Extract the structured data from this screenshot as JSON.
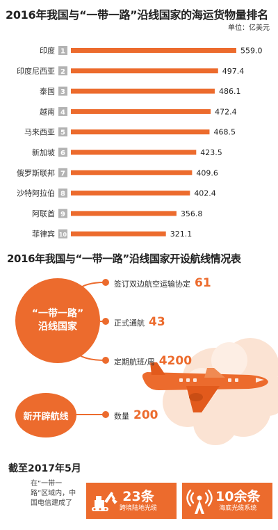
{
  "section1": {
    "title": "2016年我国与“一带一路”沿线国家的海运货物量排名",
    "unit": "单位：亿美元"
  },
  "chart_data": {
    "type": "bar",
    "orientation": "horizontal",
    "categories": [
      "印度",
      "印度尼西亚",
      "泰国",
      "越南",
      "马来西亚",
      "新加坡",
      "俄罗斯联邦",
      "沙特阿拉伯",
      "阿联酋",
      "菲律宾"
    ],
    "ranks": [
      "1",
      "2",
      "3",
      "4",
      "5",
      "6",
      "7",
      "8",
      "9",
      "10"
    ],
    "values": [
      559.0,
      497.4,
      486.1,
      472.4,
      468.5,
      423.5,
      409.6,
      402.4,
      356.8,
      321.1
    ],
    "value_labels": [
      "559.0",
      "497.4",
      "486.1",
      "472.4",
      "468.5",
      "423.5",
      "409.6",
      "402.4",
      "356.8",
      "321.1"
    ],
    "title": "2016年我国与“一带一路”沿线国家的海运货物量排名",
    "unit": "单位：亿美元",
    "bar_color": "#ec6b2d",
    "rank_color": "#b3b3b3"
  },
  "section2": {
    "title": "2016年我国与“一带一路”沿线国家开设航线情况表",
    "hub1": {
      "line1": "“一带一路”",
      "line2": "沿线国家"
    },
    "items1": [
      {
        "label": "签订双边航空运输协定",
        "value": "61"
      },
      {
        "label": "正式通航",
        "value": "43"
      },
      {
        "label": "定期航班/周",
        "value": "4200"
      }
    ],
    "hub2": "新开辟航线",
    "item2": {
      "label": "数量",
      "value": "200"
    },
    "accent": "#ec6b2d"
  },
  "section3": {
    "title": "截至2017年5月",
    "note": "在“一带一路”区域内，中国电信建成了",
    "box1": {
      "big": "23条",
      "small": "跨境陆地光缆",
      "icon": "excavator-icon"
    },
    "box2": {
      "big": "10余条",
      "small": "海底光缆系统",
      "icon": "signal-tower-icon"
    }
  }
}
